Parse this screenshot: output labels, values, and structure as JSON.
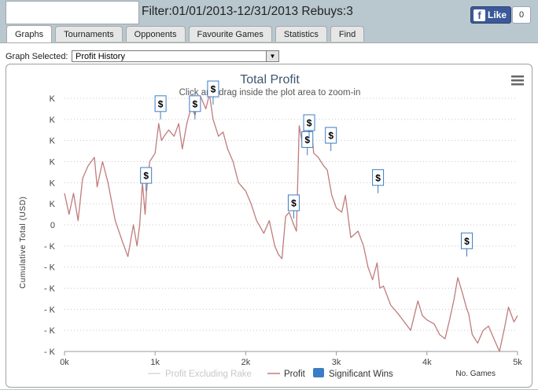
{
  "header": {
    "filter_text": "Filter:01/01/2013-12/31/2013 Rebuys:3",
    "like_label": "Like",
    "like_count": "0"
  },
  "tabs": [
    {
      "label": "Graphs",
      "active": true
    },
    {
      "label": "Tournaments"
    },
    {
      "label": "Opponents"
    },
    {
      "label": "Favourite Games"
    },
    {
      "label": "Statistics"
    },
    {
      "label": "Find"
    }
  ],
  "graph_select": {
    "label": "Graph Selected:",
    "value": "Profit History"
  },
  "chart_data": {
    "type": "line",
    "title": "Total Profit",
    "subtitle": "Click and drag inside the plot area to zoom-in",
    "ylabel": "Cumulative Total (USD)",
    "xlabel": "No. Games",
    "x_ticks": [
      "0k",
      "1k",
      "2k",
      "3k",
      "4k",
      "5k"
    ],
    "xlim": [
      0,
      5000
    ],
    "y_ticks": [
      "- K",
      "- K",
      "- K",
      "- K",
      "- K",
      "- K",
      "0",
      "K",
      "K",
      "K",
      "K",
      "K",
      "K"
    ],
    "grid": true,
    "legend": [
      "Profit Excluding Rake",
      "Profit",
      "Significant Wins"
    ],
    "legend_position": "bottom-center",
    "colors": {
      "profit": "#c07c7c",
      "profit_excl_rake": "#d8d8d8",
      "significant": "#3b7dc4"
    },
    "series": [
      {
        "name": "Profit",
        "x": [
          0,
          50,
          100,
          150,
          200,
          260,
          330,
          360,
          420,
          480,
          560,
          640,
          700,
          760,
          800,
          830,
          860,
          890,
          905,
          940,
          1000,
          1040,
          1070,
          1100,
          1150,
          1210,
          1260,
          1300,
          1350,
          1400,
          1440,
          1470,
          1500,
          1560,
          1600,
          1640,
          1700,
          1750,
          1800,
          1860,
          1920,
          2000,
          2060,
          2120,
          2200,
          2260,
          2320,
          2360,
          2400,
          2440,
          2480,
          2530,
          2560,
          2590,
          2620,
          2650,
          2670,
          2700,
          2720,
          2750,
          2800,
          2860,
          2900,
          2950,
          3000,
          3060,
          3100,
          3160,
          3240,
          3300,
          3350,
          3400,
          3450,
          3480,
          3520,
          3600,
          3680,
          3750,
          3820,
          3900,
          3950,
          4000,
          4080,
          4140,
          4200,
          4250,
          4300,
          4340,
          4390,
          4440,
          4460,
          4500,
          4560,
          4620,
          4680,
          4740,
          4800,
          4860,
          4900,
          4960,
          5000
        ],
        "values": [
          1.5,
          0.5,
          1.5,
          0.2,
          2.2,
          2.8,
          3.2,
          1.8,
          3.0,
          2.0,
          0.2,
          -0.8,
          -1.5,
          0.0,
          -1.0,
          0.0,
          2.0,
          0.5,
          1.6,
          3.0,
          3.4,
          4.8,
          4.0,
          4.2,
          4.5,
          4.2,
          4.8,
          3.6,
          4.8,
          5.6,
          5.2,
          5.9,
          6.1,
          5.5,
          6.2,
          5.0,
          4.2,
          4.4,
          3.6,
          3.0,
          2.0,
          1.6,
          1.0,
          0.2,
          -0.4,
          0.2,
          -1.0,
          -1.4,
          -1.6,
          0.4,
          0.6,
          0.0,
          -0.3,
          4.7,
          4.0,
          4.7,
          4.9,
          4.3,
          4.8,
          3.4,
          3.2,
          2.8,
          2.6,
          1.4,
          0.8,
          0.6,
          1.4,
          -0.6,
          -0.3,
          -1.0,
          -2.0,
          -2.6,
          -1.8,
          -3.0,
          -2.9,
          -3.8,
          -4.2,
          -4.6,
          -5.0,
          -3.6,
          -4.3,
          -4.5,
          -4.7,
          -5.2,
          -5.4,
          -4.5,
          -3.5,
          -2.5,
          -3.2,
          -4.0,
          -4.2,
          -5.2,
          -5.6,
          -5.0,
          -4.8,
          -5.4,
          -6.0,
          -4.8,
          -3.9,
          -4.6,
          -4.3
        ]
      }
    ],
    "significant_wins": [
      {
        "x": 900,
        "y": 1.6
      },
      {
        "x": 1060,
        "y": 5.0
      },
      {
        "x": 1440,
        "y": 5.0
      },
      {
        "x": 1640,
        "y": 5.7
      },
      {
        "x": 2530,
        "y": 0.3
      },
      {
        "x": 2680,
        "y": 3.3
      },
      {
        "x": 2700,
        "y": 4.1
      },
      {
        "x": 2940,
        "y": 3.5
      },
      {
        "x": 3460,
        "y": 1.5
      },
      {
        "x": 4440,
        "y": -1.5
      }
    ],
    "sig_label": "$",
    "menu_icon": "hamburger-menu-icon"
  }
}
